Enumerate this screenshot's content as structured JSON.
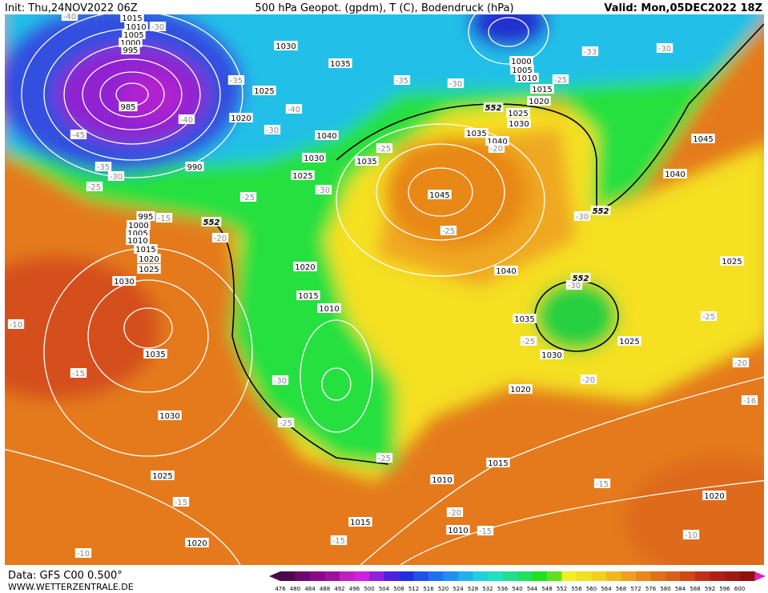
{
  "header": {
    "init": "Init: Thu,24NOV2022 06Z",
    "title": "500 hPa Geopot. (gpdm), T (C), Bodendruck (hPa)",
    "valid": "Valid: Mon,05DEC2022 18Z"
  },
  "footer": {
    "data": "Data: GFS C00 0.500°",
    "site": "WWW.WETTERZENTRALE.DE"
  },
  "legend": {
    "values": [
      476,
      480,
      484,
      488,
      492,
      496,
      500,
      504,
      508,
      512,
      516,
      520,
      524,
      528,
      532,
      536,
      540,
      544,
      548,
      552,
      556,
      560,
      564,
      568,
      572,
      576,
      580,
      584,
      588,
      592,
      596,
      600
    ],
    "colors": [
      "#4b0a4b",
      "#6a0a6a",
      "#8a0a8a",
      "#a010a0",
      "#c020c0",
      "#d020e0",
      "#9020e0",
      "#5020e0",
      "#2030e0",
      "#2050e8",
      "#2070f0",
      "#2090f0",
      "#20b0f0",
      "#20d0e0",
      "#20e0c0",
      "#20e090",
      "#20e060",
      "#20e020",
      "#60e020",
      "#f0f020",
      "#f0e020",
      "#f0d020",
      "#f0b820",
      "#f0a020",
      "#e88818",
      "#e07018",
      "#d86018",
      "#d04818",
      "#c03018",
      "#b02018",
      "#a01818",
      "#901010"
    ]
  },
  "map": {
    "pressure_labels": [
      "1015",
      "1010",
      "1005",
      "1000",
      "995",
      "985",
      "990",
      "995",
      "1000",
      "1005",
      "1010",
      "1015",
      "1020",
      "1025",
      "1030",
      "1035",
      "1030",
      "1025",
      "1020",
      "1030",
      "1035",
      "1025",
      "1020",
      "1040",
      "1030",
      "1035",
      "1025",
      "1020",
      "1015",
      "1010",
      "1045",
      "1035",
      "1040",
      "1025",
      "1030",
      "1000",
      "1005",
      "1010",
      "1015",
      "1020",
      "1045",
      "1040",
      "1025",
      "1040",
      "1035",
      "1030",
      "1025",
      "1020",
      "1015",
      "1010",
      "1020",
      "1015",
      "1010"
    ],
    "temperature_labels": [
      "-40",
      "-30",
      "-45",
      "-35",
      "-30",
      "-25",
      "-40",
      "-35",
      "-40",
      "-30",
      "-25",
      "-20",
      "-15",
      "-35",
      "-30",
      "-33",
      "-30",
      "-25",
      "-25",
      "-20",
      "-30",
      "-30",
      "-25",
      "-30",
      "-25",
      "-25",
      "-20",
      "-16",
      "-25",
      "-30",
      "-25",
      "-20",
      "-15",
      "-20",
      "-15",
      "-15",
      "-10",
      "-15",
      "-15",
      "-10",
      "-10"
    ],
    "height_labels": [
      "552",
      "552",
      "552",
      "552"
    ]
  }
}
